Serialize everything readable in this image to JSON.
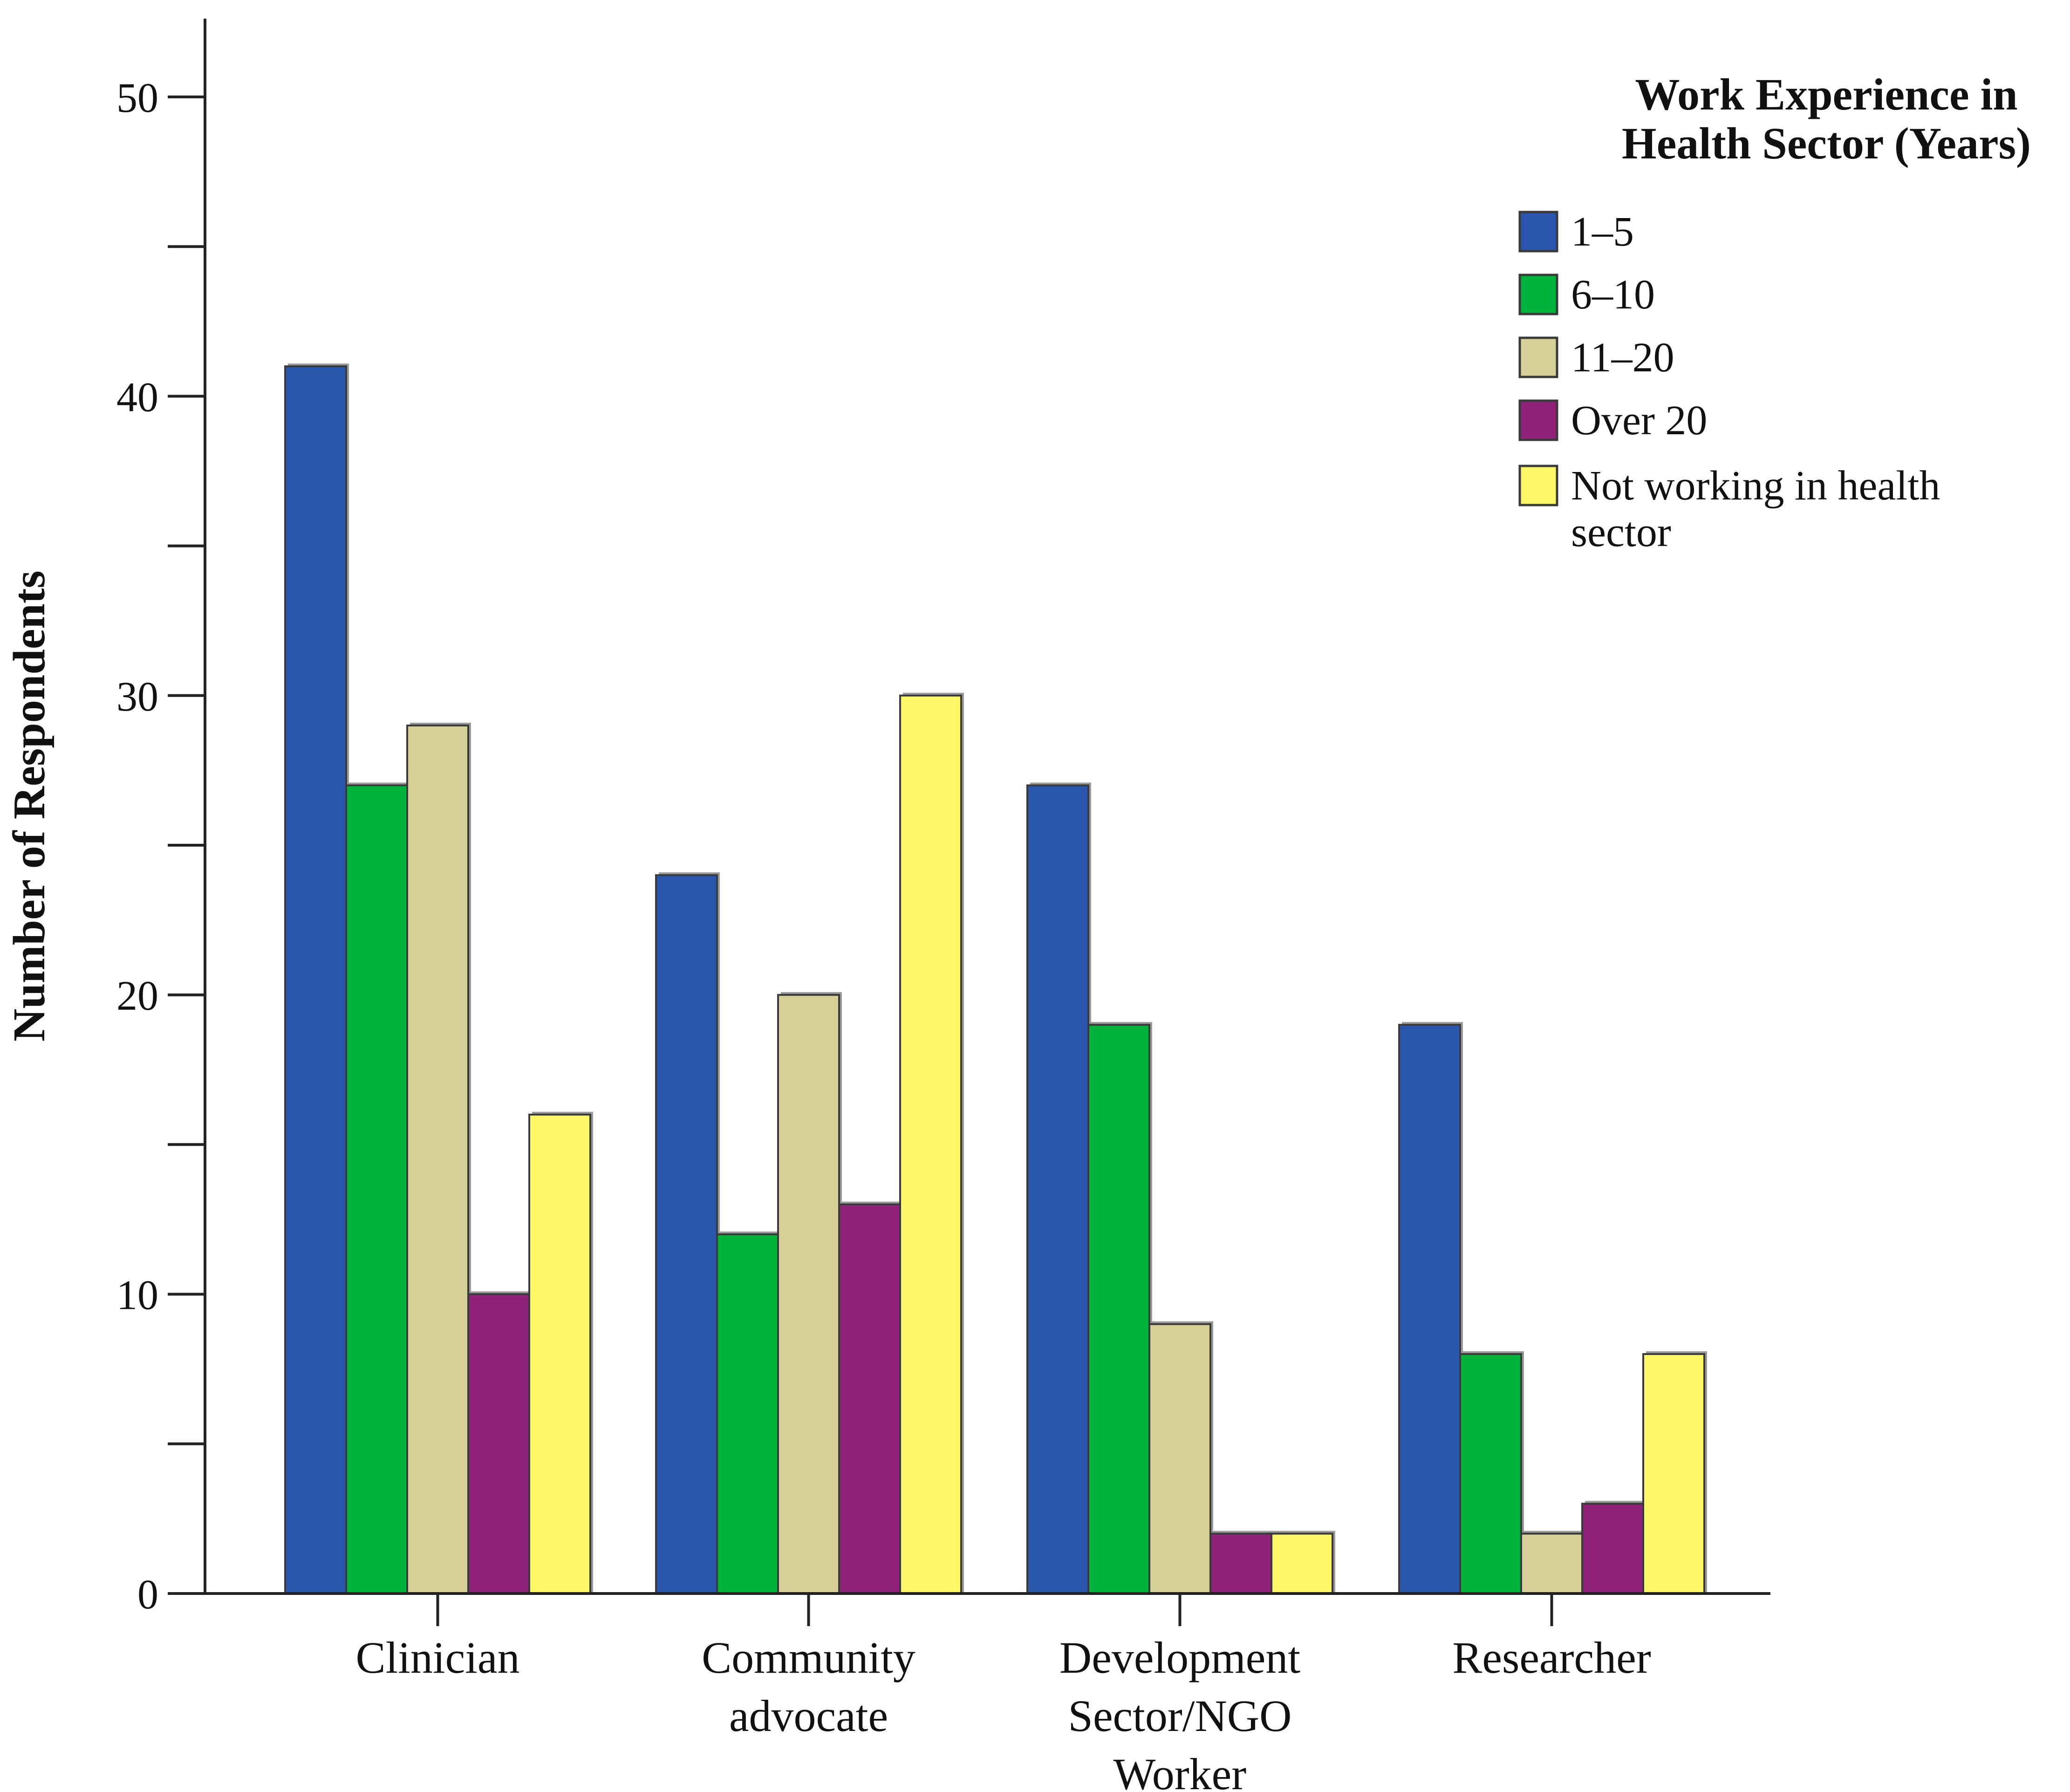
{
  "chart_data": {
    "type": "bar",
    "ylabel": "Number of Respondents",
    "xlabel": "",
    "ylim": [
      0,
      52
    ],
    "yticks": [
      0,
      10,
      20,
      30,
      40,
      50
    ],
    "grid": false,
    "legend_position": "top-right",
    "legend_title": [
      "Work Experience in",
      "Health Sector (Years)"
    ],
    "categories": [
      [
        "Clinician"
      ],
      [
        "Community",
        "advocate"
      ],
      [
        "Development",
        "Sector/NGO",
        "Worker"
      ],
      [
        "Researcher"
      ]
    ],
    "series": [
      {
        "name": "1–5",
        "color": "#2b56ae",
        "values": [
          41,
          24,
          27,
          19
        ]
      },
      {
        "name": "6–10",
        "color": "#00b33c",
        "values": [
          27,
          12,
          19,
          8
        ]
      },
      {
        "name": "11–20",
        "color": "#d7cf98",
        "values": [
          29,
          20,
          9,
          2
        ]
      },
      {
        "name": "Over 20",
        "color": "#8f2379",
        "values": [
          10,
          13,
          2,
          3
        ]
      },
      {
        "name": "Not working in health sector",
        "legend_lines": [
          "Not working in health",
          "sector"
        ],
        "color": "#fdf767",
        "values": [
          16,
          30,
          2,
          8
        ]
      }
    ]
  }
}
